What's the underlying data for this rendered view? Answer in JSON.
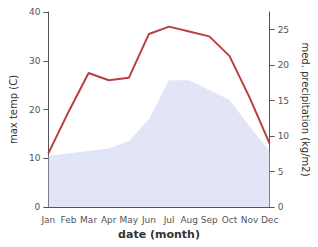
{
  "chart_data": {
    "type": "line",
    "xlabel": "date (month)",
    "ylabel": "max temp (C)",
    "y2label": "med. precipitation (kg/m2)",
    "categories": [
      "Jan",
      "Feb",
      "Mar",
      "Apr",
      "May",
      "Jun",
      "Jul",
      "Aug",
      "Sep",
      "Oct",
      "Nov",
      "Dec"
    ],
    "series": [
      {
        "type": "area",
        "color": "#c8d0ee",
        "values": [
          10.5,
          11.0,
          11.5,
          12.0,
          13.5,
          18.0,
          26.0,
          26.0,
          24.0,
          22.0,
          16.5,
          11.5
        ]
      },
      {
        "type": "line",
        "color": "#b94040",
        "values": [
          11.0,
          19.5,
          27.5,
          26.0,
          26.5,
          35.5,
          37.0,
          36.0,
          35.0,
          31.0,
          22.5,
          13.0
        ]
      }
    ],
    "ylim": [
      0,
      40
    ],
    "yticks": [
      0,
      10,
      20,
      30,
      40
    ],
    "y2lim": [
      0,
      27.5
    ],
    "y2ticks": [
      0,
      5,
      10,
      15,
      20,
      25
    ],
    "grid": false
  }
}
